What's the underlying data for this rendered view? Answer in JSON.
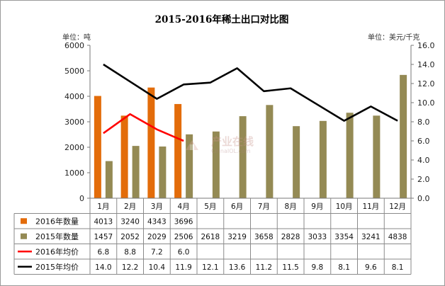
{
  "chart_data": {
    "type": "bar",
    "title": "2015-2016年稀土出口对比图",
    "left_unit": "单位：吨",
    "right_unit": "单位：美元/千克",
    "categories": [
      "1月",
      "2月",
      "3月",
      "4月",
      "5月",
      "6月",
      "7月",
      "8月",
      "9月",
      "10月",
      "11月",
      "12月"
    ],
    "y_left": {
      "min": 0,
      "max": 6000,
      "ticks": [
        "0",
        "1000",
        "2000",
        "3000",
        "4000",
        "5000",
        "6000"
      ]
    },
    "y_right": {
      "min": 0,
      "max": 16,
      "ticks": [
        "0.0",
        "2.0",
        "4.0",
        "6.0",
        "8.0",
        "10.0",
        "12.0",
        "14.0",
        "16.0"
      ]
    },
    "series": [
      {
        "name": "2016年数量",
        "kind": "bar",
        "axis": "left",
        "color": "#e36c0a",
        "values": [
          4013,
          3240,
          4343,
          3696,
          null,
          null,
          null,
          null,
          null,
          null,
          null,
          null
        ],
        "labels": [
          "4013",
          "3240",
          "4343",
          "3696",
          "",
          "",
          "",
          "",
          "",
          "",
          "",
          ""
        ]
      },
      {
        "name": "2015年数量",
        "kind": "bar",
        "axis": "left",
        "color": "#948a54",
        "values": [
          1457,
          2052,
          2029,
          2506,
          2618,
          3219,
          3658,
          2828,
          3033,
          3354,
          3241,
          4838
        ],
        "labels": [
          "1457",
          "2052",
          "2029",
          "2506",
          "2618",
          "3219",
          "3658",
          "2828",
          "3033",
          "3354",
          "3241",
          "4838"
        ]
      },
      {
        "name": "2016年均价",
        "kind": "line",
        "axis": "right",
        "color": "#ff0000",
        "values": [
          6.8,
          8.8,
          7.2,
          6.0,
          null,
          null,
          null,
          null,
          null,
          null,
          null,
          null
        ],
        "labels": [
          "6.8",
          "8.8",
          "7.2",
          "6.0",
          "",
          "",
          "",
          "",
          "",
          "",
          "",
          ""
        ]
      },
      {
        "name": "2015年均价",
        "kind": "line",
        "axis": "right",
        "color": "#000000",
        "values": [
          14.0,
          12.2,
          10.4,
          11.9,
          12.1,
          13.6,
          11.2,
          11.5,
          9.8,
          8.1,
          9.6,
          8.1
        ],
        "labels": [
          "14.0",
          "12.2",
          "10.4",
          "11.9",
          "12.1",
          "13.6",
          "11.2",
          "11.5",
          "9.8",
          "8.1",
          "9.6",
          "8.1"
        ]
      }
    ],
    "grid": false,
    "legend": "data-table-left"
  },
  "watermark": {
    "main": "产业在线",
    "sub": "ChinaIOL.com"
  }
}
